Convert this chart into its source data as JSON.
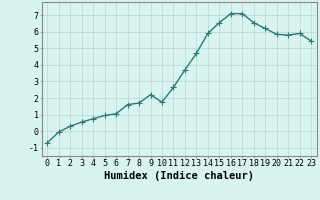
{
  "x": [
    0,
    1,
    2,
    3,
    4,
    5,
    6,
    7,
    8,
    9,
    10,
    11,
    12,
    13,
    14,
    15,
    16,
    17,
    18,
    19,
    20,
    21,
    22,
    23
  ],
  "y": [
    -0.7,
    -0.05,
    0.3,
    0.55,
    0.75,
    0.95,
    1.05,
    1.6,
    1.7,
    2.2,
    1.75,
    2.65,
    3.7,
    4.7,
    5.9,
    6.55,
    7.1,
    7.1,
    6.55,
    6.2,
    5.85,
    5.8,
    5.9,
    5.45
  ],
  "line_color": "#2d7a6e",
  "marker": "D",
  "marker_size": 2.0,
  "line_width": 1.0,
  "bg_color": "#d8f4f0",
  "grid_color": "#b8d8d4",
  "xlabel": "Humidex (Indice chaleur)",
  "ylim": [
    -1.5,
    7.8
  ],
  "xlim": [
    -0.5,
    23.5
  ],
  "yticks": [
    -1,
    0,
    1,
    2,
    3,
    4,
    5,
    6,
    7
  ],
  "xticks": [
    0,
    1,
    2,
    3,
    4,
    5,
    6,
    7,
    8,
    9,
    10,
    11,
    12,
    13,
    14,
    15,
    16,
    17,
    18,
    19,
    20,
    21,
    22,
    23
  ],
  "tick_fontsize": 6.0,
  "xlabel_fontsize": 7.5,
  "spine_color": "#888888"
}
